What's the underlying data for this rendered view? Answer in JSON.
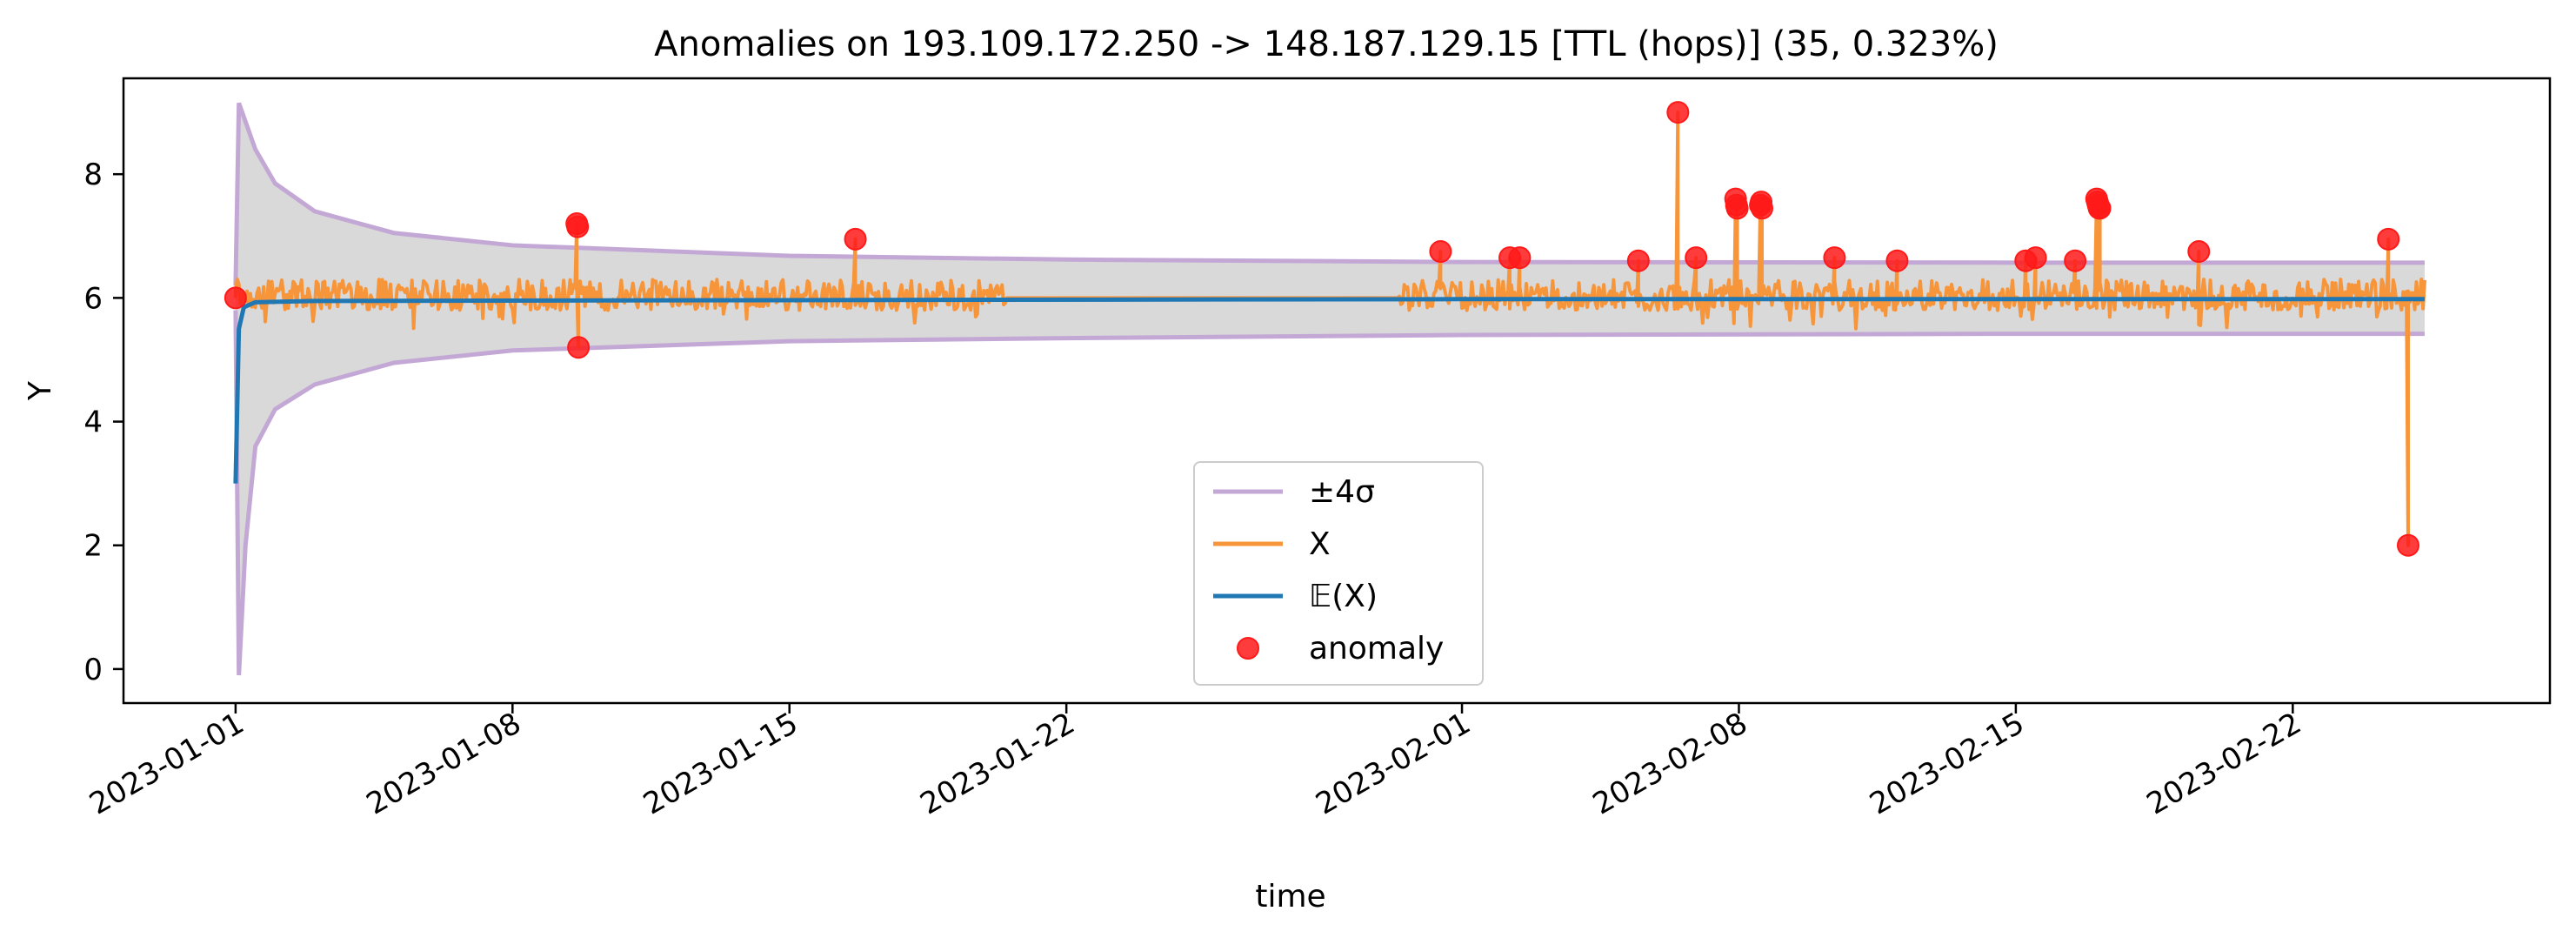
{
  "chart_data": {
    "type": "line",
    "title": "Anomalies on 193.109.172.250 -> 148.187.129.15 [TTL (hops)] (35, 0.323%)",
    "xlabel": "time",
    "ylabel": "Y",
    "x_range": [
      "2022-12-29T04:00",
      "2023-02-28T12:00"
    ],
    "ylim": [
      -0.55,
      9.55
    ],
    "yticks": [
      0,
      2,
      4,
      6,
      8
    ],
    "xticks": [
      "2023-01-01",
      "2023-01-08",
      "2023-01-15",
      "2023-01-22",
      "2023-02-01",
      "2023-02-08",
      "2023-02-15",
      "2023-02-22"
    ],
    "grid": false,
    "legend": {
      "placement": "lower-center",
      "entries": [
        {
          "label": "±4σ",
          "color": "#c3a8d6",
          "kind": "band"
        },
        {
          "label": "X",
          "color": "#f7953b",
          "kind": "line"
        },
        {
          "label": "𝔼(X)",
          "color": "#1f77b4",
          "kind": "line"
        },
        {
          "label": "anomaly",
          "color": "#ff1a1a",
          "kind": "marker"
        }
      ]
    },
    "colors": {
      "band_edge": "#c3a8d6",
      "band_fill": "#d9d9d9",
      "x_line": "#f7953b",
      "mean_line": "#1f77b4",
      "anomaly": "#ff1a1a"
    },
    "data_range": [
      "2023-01-01T00:00",
      "2023-02-25T08:00"
    ],
    "data_gap": [
      "2023-01-20T11:00",
      "2023-01-30T10:00"
    ],
    "expected": [
      {
        "t": "2023-01-01T00:00",
        "y": 3.0
      },
      {
        "t": "2023-01-01T02:00",
        "y": 5.5
      },
      {
        "t": "2023-01-01T05:00",
        "y": 5.85
      },
      {
        "t": "2023-01-01T12:00",
        "y": 5.93
      },
      {
        "t": "2023-01-03T00:00",
        "y": 5.95
      },
      {
        "t": "2023-01-20T00:00",
        "y": 5.97
      },
      {
        "t": "2023-02-01T00:00",
        "y": 5.98
      },
      {
        "t": "2023-02-25T08:00",
        "y": 5.98
      }
    ],
    "upper_band": [
      {
        "t": "2023-01-01T00:00",
        "y": 6.2
      },
      {
        "t": "2023-01-01T02:00",
        "y": 9.15
      },
      {
        "t": "2023-01-01T12:00",
        "y": 8.4
      },
      {
        "t": "2023-01-02T00:00",
        "y": 7.85
      },
      {
        "t": "2023-01-03T00:00",
        "y": 7.4
      },
      {
        "t": "2023-01-05T00:00",
        "y": 7.05
      },
      {
        "t": "2023-01-08T00:00",
        "y": 6.85
      },
      {
        "t": "2023-01-15T00:00",
        "y": 6.68
      },
      {
        "t": "2023-01-22T00:00",
        "y": 6.62
      },
      {
        "t": "2023-02-01T00:00",
        "y": 6.58
      },
      {
        "t": "2023-02-15T00:00",
        "y": 6.57
      },
      {
        "t": "2023-02-25T08:00",
        "y": 6.57
      }
    ],
    "lower_band": [
      {
        "t": "2023-01-01T00:00",
        "y": 5.8
      },
      {
        "t": "2023-01-01T02:00",
        "y": -0.1
      },
      {
        "t": "2023-01-01T06:00",
        "y": 2.0
      },
      {
        "t": "2023-01-01T12:00",
        "y": 3.6
      },
      {
        "t": "2023-01-02T00:00",
        "y": 4.2
      },
      {
        "t": "2023-01-03T00:00",
        "y": 4.6
      },
      {
        "t": "2023-01-05T00:00",
        "y": 4.95
      },
      {
        "t": "2023-01-08T00:00",
        "y": 5.15
      },
      {
        "t": "2023-01-15T00:00",
        "y": 5.3
      },
      {
        "t": "2023-01-22T00:00",
        "y": 5.35
      },
      {
        "t": "2023-02-01T00:00",
        "y": 5.4
      },
      {
        "t": "2023-02-15T00:00",
        "y": 5.42
      },
      {
        "t": "2023-02-25T08:00",
        "y": 5.42
      }
    ],
    "x_spikes": [
      {
        "t": "2023-01-01T00:00",
        "y": 6.0
      },
      {
        "t": "2023-01-09T15:00",
        "y": 7.2
      },
      {
        "t": "2023-01-09T16:00",
        "y": 5.2
      },
      {
        "t": "2023-01-16T16:00",
        "y": 6.95
      },
      {
        "t": "2023-01-31T11:00",
        "y": 6.75
      },
      {
        "t": "2023-02-02T05:00",
        "y": 6.65
      },
      {
        "t": "2023-02-02T11:00",
        "y": 6.65
      },
      {
        "t": "2023-02-05T11:00",
        "y": 6.6
      },
      {
        "t": "2023-02-06T11:00",
        "y": 9.0
      },
      {
        "t": "2023-02-06T22:00",
        "y": 6.65
      },
      {
        "t": "2023-02-07T22:00",
        "y": 7.6
      },
      {
        "t": "2023-02-07T23:00",
        "y": 7.45
      },
      {
        "t": "2023-02-08T13:00",
        "y": 7.5
      },
      {
        "t": "2023-02-08T14:00",
        "y": 7.45
      },
      {
        "t": "2023-02-10T10:00",
        "y": 6.65
      },
      {
        "t": "2023-02-12T00:00",
        "y": 6.6
      },
      {
        "t": "2023-02-15T06:00",
        "y": 6.6
      },
      {
        "t": "2023-02-15T12:00",
        "y": 6.65
      },
      {
        "t": "2023-02-16T12:00",
        "y": 6.6
      },
      {
        "t": "2023-02-17T01:00",
        "y": 7.6
      },
      {
        "t": "2023-02-17T02:00",
        "y": 7.5
      },
      {
        "t": "2023-02-17T03:00",
        "y": 7.45
      },
      {
        "t": "2023-02-19T15:00",
        "y": 6.75
      },
      {
        "t": "2023-02-24T10:00",
        "y": 6.95
      },
      {
        "t": "2023-02-24T22:00",
        "y": 2.0
      }
    ],
    "anomalies": [
      {
        "t": "2023-01-01T00:00",
        "y": 6.0
      },
      {
        "t": "2023-01-09T15:00",
        "y": 7.2
      },
      {
        "t": "2023-01-09T15:30",
        "y": 7.15
      },
      {
        "t": "2023-01-09T16:00",
        "y": 5.2
      },
      {
        "t": "2023-01-16T16:00",
        "y": 6.95
      },
      {
        "t": "2023-01-31T11:00",
        "y": 6.75
      },
      {
        "t": "2023-02-02T05:00",
        "y": 6.65
      },
      {
        "t": "2023-02-02T11:00",
        "y": 6.65
      },
      {
        "t": "2023-02-05T11:00",
        "y": 6.6
      },
      {
        "t": "2023-02-06T11:00",
        "y": 9.0
      },
      {
        "t": "2023-02-06T22:00",
        "y": 6.65
      },
      {
        "t": "2023-02-07T22:00",
        "y": 7.6
      },
      {
        "t": "2023-02-07T22:30",
        "y": 7.5
      },
      {
        "t": "2023-02-07T23:00",
        "y": 7.45
      },
      {
        "t": "2023-02-08T13:00",
        "y": 7.5
      },
      {
        "t": "2023-02-08T13:30",
        "y": 7.55
      },
      {
        "t": "2023-02-08T14:00",
        "y": 7.45
      },
      {
        "t": "2023-02-10T10:00",
        "y": 6.65
      },
      {
        "t": "2023-02-12T00:00",
        "y": 6.6
      },
      {
        "t": "2023-02-15T06:00",
        "y": 6.6
      },
      {
        "t": "2023-02-15T12:00",
        "y": 6.65
      },
      {
        "t": "2023-02-16T12:00",
        "y": 6.6
      },
      {
        "t": "2023-02-17T01:00",
        "y": 7.6
      },
      {
        "t": "2023-02-17T01:30",
        "y": 7.55
      },
      {
        "t": "2023-02-17T02:00",
        "y": 7.5
      },
      {
        "t": "2023-02-17T02:30",
        "y": 7.45
      },
      {
        "t": "2023-02-17T03:00",
        "y": 7.45
      },
      {
        "t": "2023-02-19T15:00",
        "y": 6.75
      },
      {
        "t": "2023-02-24T10:00",
        "y": 6.95
      },
      {
        "t": "2023-02-24T22:00",
        "y": 2.0
      }
    ]
  }
}
